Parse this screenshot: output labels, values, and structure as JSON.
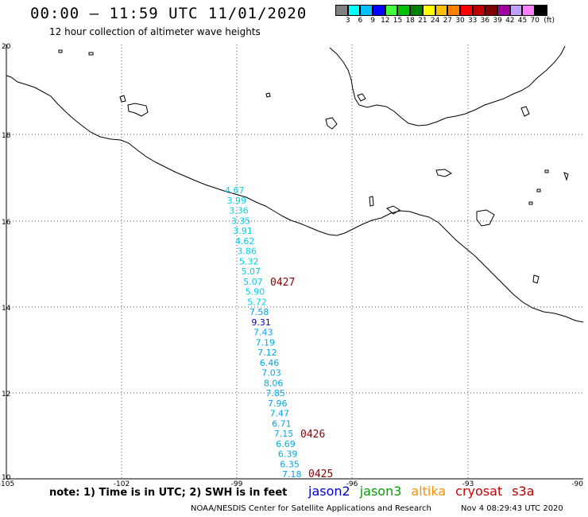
{
  "title": "00:00 – 11:59 UTC 11/01/2020",
  "subtitle": "12 hour collection of altimeter wave heights",
  "legend": {
    "unit": "(ft)",
    "colors": [
      "#808080",
      "#00ffff",
      "#00bfff",
      "#0000ff",
      "#40ff40",
      "#00c000",
      "#008000",
      "#ffff00",
      "#ffc000",
      "#ff8000",
      "#ff0000",
      "#c00000",
      "#800000",
      "#a000a0",
      "#c0a0ff",
      "#ff80ff",
      "#000000"
    ],
    "labels": [
      "3",
      "6",
      "9",
      "12",
      "15",
      "18",
      "21",
      "24",
      "27",
      "30",
      "33",
      "36",
      "39",
      "42",
      "45",
      "70"
    ]
  },
  "axes": {
    "lat_labels": [
      "20",
      "18",
      "16",
      "14",
      "12",
      "10"
    ],
    "lon_labels": [
      "-105",
      "-102",
      "-99",
      "-96",
      "-93",
      "-90"
    ]
  },
  "track": {
    "points": [
      {
        "v": "4.67",
        "c": "#00cfe8"
      },
      {
        "v": "3.99",
        "c": "#00cfe8"
      },
      {
        "v": "3.36",
        "c": "#00cfe8"
      },
      {
        "v": "3.35",
        "c": "#00cfe8"
      },
      {
        "v": "3.91",
        "c": "#00cfe8"
      },
      {
        "v": "4.62",
        "c": "#00cfe8"
      },
      {
        "v": "3.86",
        "c": "#00cfe8"
      },
      {
        "v": "5.32",
        "c": "#00cfe8"
      },
      {
        "v": "5.07",
        "c": "#00cfe8"
      },
      {
        "v": "5.07",
        "c": "#00cfe8"
      },
      {
        "v": "5.90",
        "c": "#00cfe8"
      },
      {
        "v": "5.72",
        "c": "#00cfe8"
      },
      {
        "v": "7.58",
        "c": "#00a8e8"
      },
      {
        "v": "9.31",
        "c": "#0000cc"
      },
      {
        "v": "7.43",
        "c": "#00a8e8"
      },
      {
        "v": "7.19",
        "c": "#00a8e8"
      },
      {
        "v": "7.12",
        "c": "#00a8e8"
      },
      {
        "v": "6.46",
        "c": "#00a8e8"
      },
      {
        "v": "7.03",
        "c": "#00a8e8"
      },
      {
        "v": "8.06",
        "c": "#00a8e8"
      },
      {
        "v": "7.85",
        "c": "#00a8e8"
      },
      {
        "v": "7.96",
        "c": "#00a8e8"
      },
      {
        "v": "7.47",
        "c": "#00a8e8"
      },
      {
        "v": "6.71",
        "c": "#00a8e8"
      },
      {
        "v": "7.15",
        "c": "#00a8e8"
      },
      {
        "v": "6.69",
        "c": "#00a8e8"
      },
      {
        "v": "6.39",
        "c": "#00a8e8"
      },
      {
        "v": "6.35",
        "c": "#00a8e8"
      },
      {
        "v": "7.18",
        "c": "#00a8e8"
      }
    ],
    "time_labels": [
      "0427",
      "0426",
      "0425"
    ],
    "time_color": "#8b0000"
  },
  "note": "note: 1) Time is in UTC; 2) SWH is in feet",
  "satellites": [
    {
      "name": "jason2",
      "color": "#0000cc"
    },
    {
      "name": "jason3",
      "color": "#00a000"
    },
    {
      "name": "altika",
      "color": "#ff9000"
    },
    {
      "name": "cryosat",
      "color": "#d00000"
    },
    {
      "name": "s3a",
      "color": "#b00000"
    }
  ],
  "footer": "NOAA/NESDIS Center for Satellite Applications and Research",
  "footer_time": "Nov  4 08:29:43 UTC 2020"
}
